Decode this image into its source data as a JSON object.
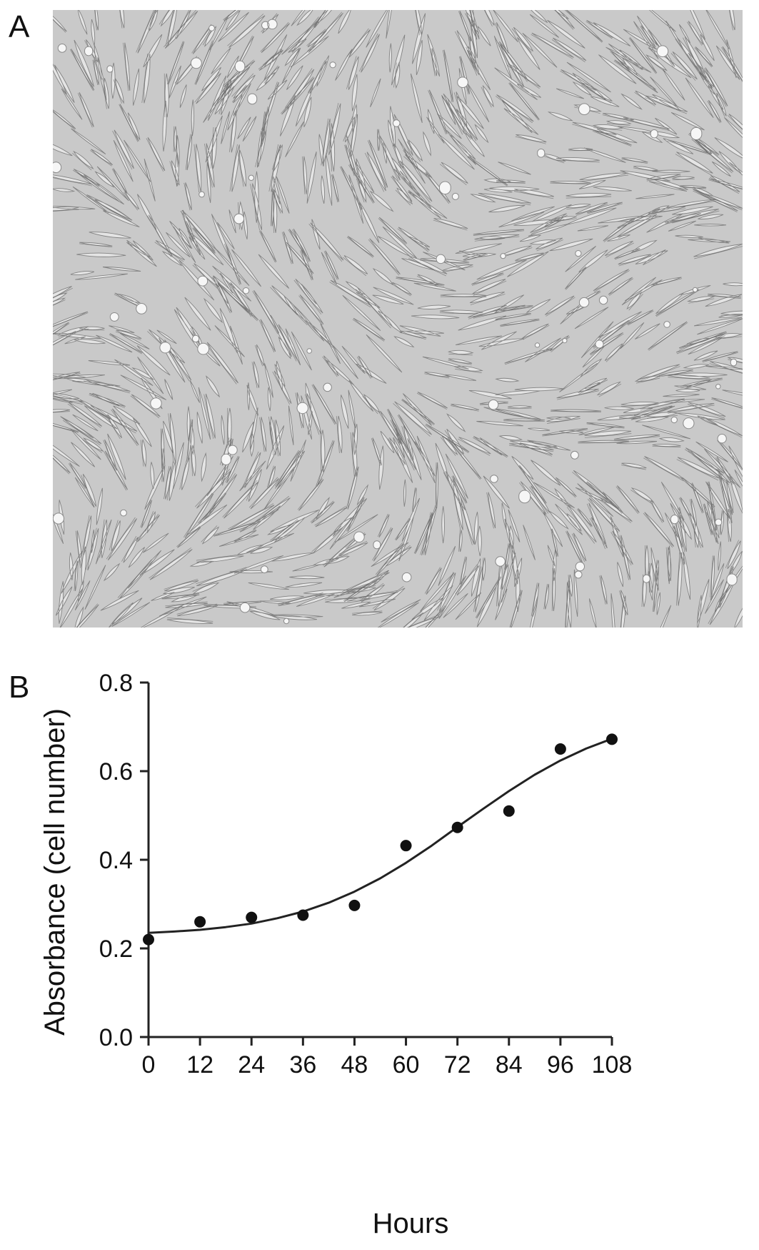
{
  "panels": {
    "a_label": "A",
    "b_label": "B"
  },
  "micrograph": {
    "icon": "phase-contrast-micrograph-fibroblast-cells",
    "background_color": "#c9c9c9",
    "cell_color": "#ececec",
    "edge_color": "#6e6e6e"
  },
  "chart_data": {
    "type": "scatter",
    "xlabel": "Hours",
    "ylabel": "Absorbance (cell number)",
    "xlim": [
      0,
      108
    ],
    "ylim": [
      0,
      0.8
    ],
    "x_ticks": [
      "0",
      "12",
      "24",
      "36",
      "48",
      "60",
      "72",
      "84",
      "96",
      "108"
    ],
    "y_ticks": [
      "0.0",
      "0.2",
      "0.4",
      "0.6",
      "0.8"
    ],
    "grid": false,
    "legend": "none",
    "series": [
      {
        "type": "scatter",
        "x": [
          0,
          12,
          24,
          36,
          48,
          60,
          72,
          84,
          96,
          108
        ],
        "y": [
          0.22,
          0.26,
          0.27,
          0.275,
          0.297,
          0.432,
          0.473,
          0.51,
          0.65,
          0.672
        ]
      },
      {
        "type": "line",
        "x": [
          0,
          6,
          12,
          18,
          24,
          30,
          36,
          42,
          48,
          54,
          60,
          66,
          72,
          78,
          84,
          90,
          96,
          102,
          108
        ],
        "y": [
          0.235,
          0.238,
          0.242,
          0.248,
          0.256,
          0.268,
          0.283,
          0.303,
          0.328,
          0.358,
          0.393,
          0.432,
          0.474,
          0.515,
          0.555,
          0.592,
          0.624,
          0.651,
          0.673
        ]
      }
    ],
    "colors": {
      "points": "#111111",
      "fit_line": "#222222",
      "axis": "#222222"
    }
  }
}
